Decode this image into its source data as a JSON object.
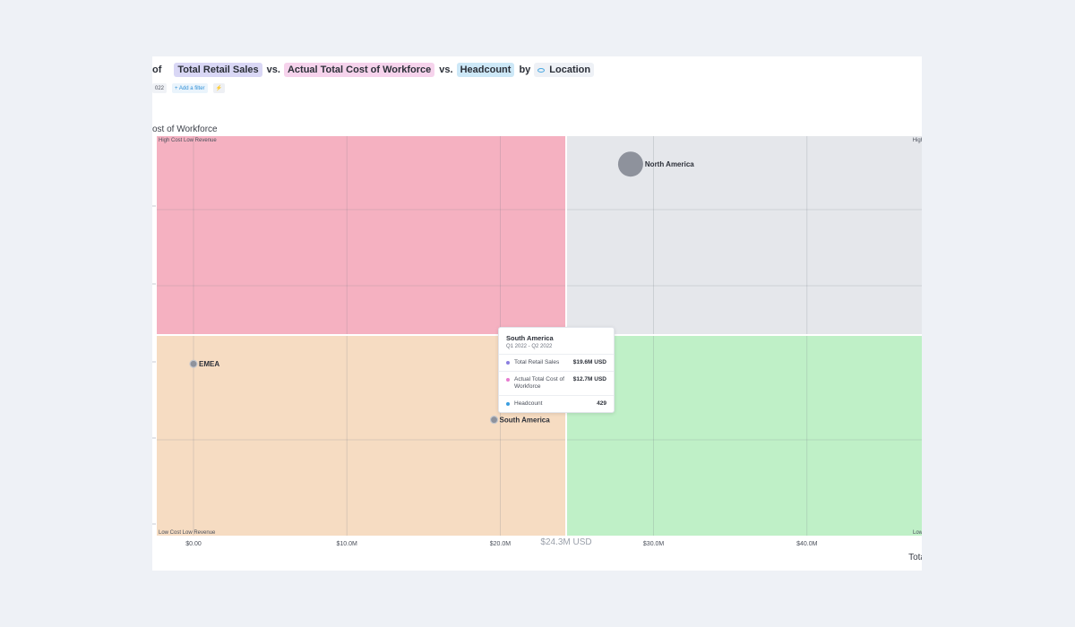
{
  "header": {
    "prefix": "of",
    "measure_1": "Total Retail Sales",
    "vs_1": "vs.",
    "measure_2": "Actual Total Cost of Workforce",
    "vs_2": "vs.",
    "measure_3": "Headcount",
    "by": "by",
    "dimension": "Location"
  },
  "filters": {
    "period_chip": "022",
    "add_filter": "+ Add a filter",
    "bolt": "⚡"
  },
  "colors": {
    "high_cost_low_revenue": "#f5b1c1",
    "high_cost_high_revenue": "#e5e7eb",
    "low_cost_low_revenue": "#f6dcc2",
    "low_cost_high_revenue": "#bff0c7",
    "bubble": "#8e929c",
    "sales_dot": "#8b7fe0",
    "cost_dot": "#e77bd0",
    "headcount_dot": "#3a9ee0"
  },
  "chart_data": {
    "type": "scatter",
    "subtype": "bubble-quadrant",
    "xlabel": "Tota",
    "ylabel": "ost of Workforce",
    "x_ticks": [
      "$0.00",
      "$10.0M",
      "$20.0M",
      "$30.0M",
      "$40.0M"
    ],
    "x_tick_values": [
      0,
      10,
      20,
      30,
      40
    ],
    "x_unit": "M USD",
    "x_divider": 24.3,
    "x_divider_label": "$24.3M USD",
    "y_divider_note": "horizontal quadrant divider near middle of plot",
    "grid": true,
    "quadrants": {
      "top_left": "High Cost Low Revenue",
      "top_right": "High",
      "bottom_left": "Low Cost Low Revenue",
      "bottom_right": "Low"
    },
    "points": [
      {
        "label": "North America",
        "x": 28.5,
        "y_rel": 0.93,
        "size": "large"
      },
      {
        "label": "EMEA",
        "x": 0.0,
        "y_rel": 0.43,
        "size": "small"
      },
      {
        "label": "South America",
        "x": 19.6,
        "y_rel": 0.29,
        "size": "small",
        "total_retail_sales": "$19.6M USD",
        "actual_total_cost_of_workforce": "$12.7M USD",
        "headcount": 429
      }
    ]
  },
  "tooltip": {
    "title": "South America",
    "period": "Q1 2022 - Q2 2022",
    "rows": [
      {
        "name": "Total Retail Sales",
        "value": "$19.6M USD"
      },
      {
        "name": "Actual Total Cost of Workforce",
        "value": "$12.7M USD"
      },
      {
        "name": "Headcount",
        "value": "429"
      }
    ]
  }
}
